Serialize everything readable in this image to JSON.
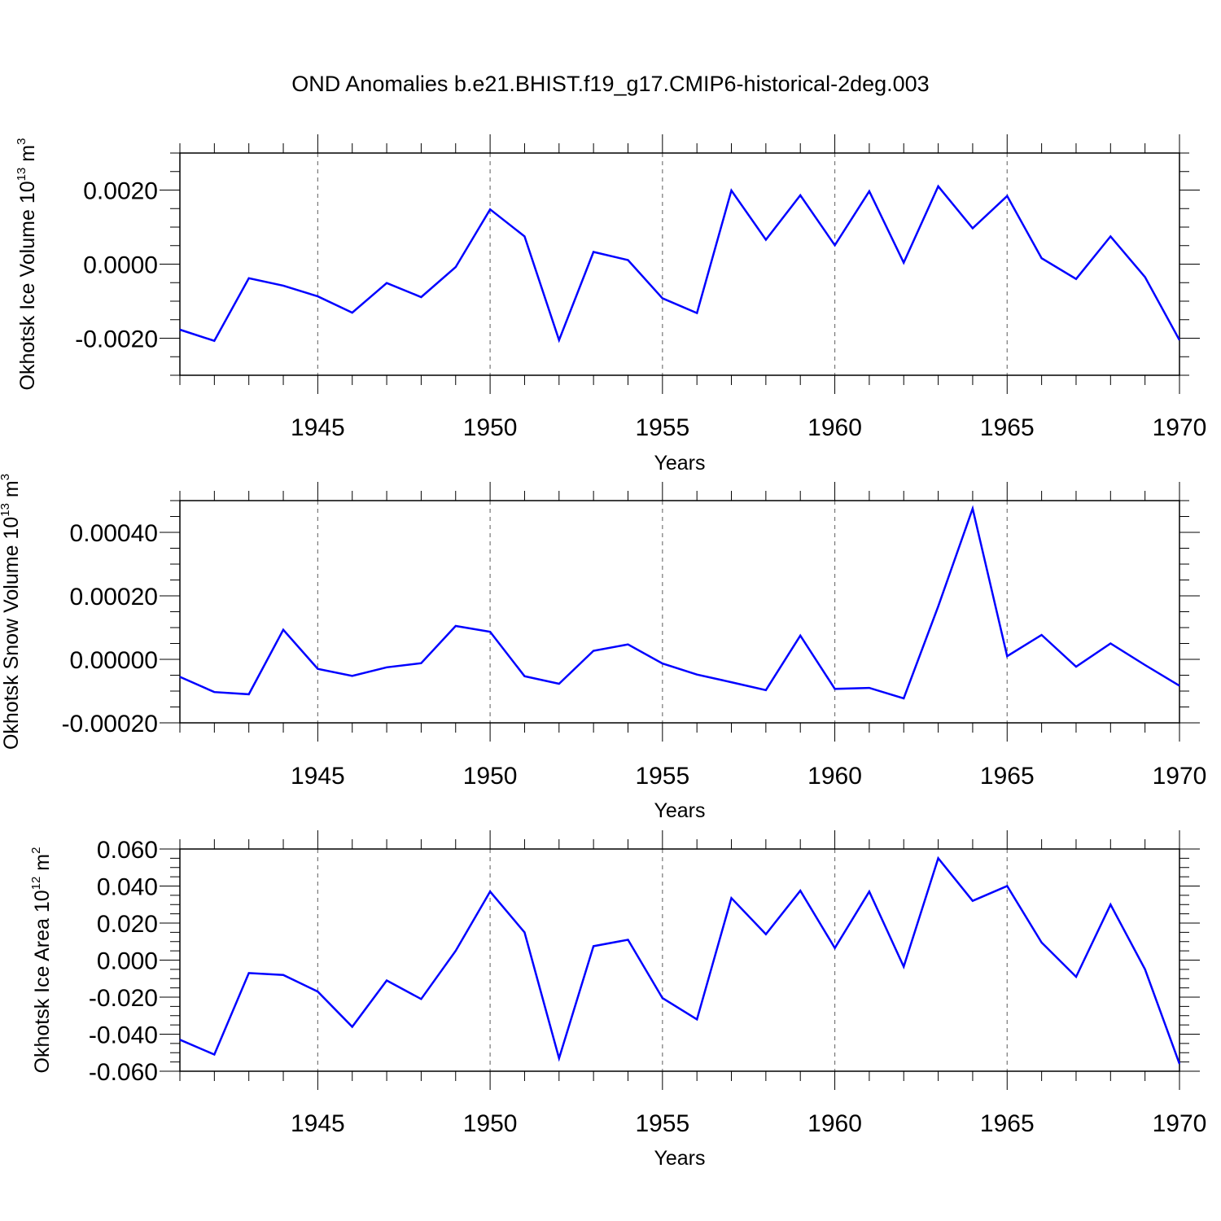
{
  "title": "OND Anomalies b.e21.BHIST.f19_g17.CMIP6-historical-2deg.003",
  "colors": {
    "line": "#0000ff",
    "axis": "#000000",
    "grid": "#777777"
  },
  "chart_data": [
    {
      "type": "line",
      "title": "OND Anomalies b.e21.BHIST.f19_g17.CMIP6-historical-2deg.003",
      "xlabel": "Years",
      "ylabel_main": "Okhotsk Ice Volume 10",
      "ylabel_exp": "13",
      "ylabel_unit": " m",
      "ylabel_unit_exp": "3",
      "xlim": [
        1941,
        1970
      ],
      "ylim": [
        -0.003,
        0.003
      ],
      "x_ticks": [
        1945,
        1950,
        1955,
        1960,
        1965,
        1970
      ],
      "x_tick_labels": [
        "1945",
        "1950",
        "1955",
        "1960",
        "1965",
        "1970"
      ],
      "y_ticks": [
        -0.002,
        0.0,
        0.002
      ],
      "y_tick_labels": [
        "-0.0020",
        "0.0000",
        "0.0020"
      ],
      "y_minor_step": 0.0005,
      "grid": "vertical dashed at major x ticks",
      "x": [
        1941,
        1942,
        1943,
        1944,
        1945,
        1946,
        1947,
        1948,
        1949,
        1950,
        1951,
        1952,
        1953,
        1954,
        1955,
        1956,
        1957,
        1958,
        1959,
        1960,
        1961,
        1962,
        1963,
        1964,
        1965,
        1966,
        1967,
        1968,
        1969,
        1970
      ],
      "series": [
        {
          "name": "Okhotsk Ice Volume",
          "values": [
            -0.00177,
            -0.00207,
            -0.00038,
            -0.00058,
            -0.00087,
            -0.00131,
            -0.00051,
            -0.00089,
            -8e-05,
            0.00148,
            0.00075,
            -0.00205,
            0.00033,
            0.00011,
            -0.00092,
            -0.00132,
            0.00199,
            0.00066,
            0.00186,
            0.00051,
            0.00197,
            4e-05,
            0.0021,
            0.00097,
            0.00184,
            0.00016,
            -0.0004,
            0.00075,
            -0.00035,
            -0.00205
          ]
        }
      ]
    },
    {
      "type": "line",
      "xlabel": "Years",
      "ylabel_main": "Okhotsk Snow Volume 10",
      "ylabel_exp": "13",
      "ylabel_unit": " m",
      "ylabel_unit_exp": "3",
      "xlim": [
        1941,
        1970
      ],
      "ylim": [
        -0.0002,
        0.0005
      ],
      "x_ticks": [
        1945,
        1950,
        1955,
        1960,
        1965,
        1970
      ],
      "x_tick_labels": [
        "1945",
        "1950",
        "1955",
        "1960",
        "1965",
        "1970"
      ],
      "y_ticks": [
        -0.0002,
        0.0,
        0.0002,
        0.0004
      ],
      "y_tick_labels": [
        "-0.00020",
        "0.00000",
        "0.00020",
        "0.00040"
      ],
      "y_minor_step": 5e-05,
      "grid": "vertical dashed at major x ticks",
      "x": [
        1941,
        1942,
        1943,
        1944,
        1945,
        1946,
        1947,
        1948,
        1949,
        1950,
        1951,
        1952,
        1953,
        1954,
        1955,
        1956,
        1957,
        1958,
        1959,
        1960,
        1961,
        1962,
        1963,
        1964,
        1965,
        1966,
        1967,
        1968,
        1969,
        1970
      ],
      "series": [
        {
          "name": "Okhotsk Snow Volume",
          "values": [
            -5.5e-05,
            -0.000103,
            -0.00011,
            9.3e-05,
            -3e-05,
            -5.2e-05,
            -2.5e-05,
            -1.2e-05,
            0.000105,
            8.7e-05,
            -5.3e-05,
            -7.7e-05,
            2.7e-05,
            4.7e-05,
            -1.3e-05,
            -4.8e-05,
            -7.2e-05,
            -9.7e-05,
            7.5e-05,
            -9.3e-05,
            -9e-05,
            -0.000123,
            0.000167,
            0.000475,
            1e-05,
            7.7e-05,
            -2.3e-05,
            5e-05,
            -1.8e-05,
            -8.3e-05
          ]
        }
      ]
    },
    {
      "type": "line",
      "xlabel": "Years",
      "ylabel_main": "Okhotsk Ice Area 10",
      "ylabel_exp": "12",
      "ylabel_unit": " m",
      "ylabel_unit_exp": "2",
      "xlim": [
        1941,
        1970
      ],
      "ylim": [
        -0.06,
        0.06
      ],
      "x_ticks": [
        1945,
        1950,
        1955,
        1960,
        1965,
        1970
      ],
      "x_tick_labels": [
        "1945",
        "1950",
        "1955",
        "1960",
        "1965",
        "1970"
      ],
      "y_ticks": [
        -0.06,
        -0.04,
        -0.02,
        0.0,
        0.02,
        0.04,
        0.06
      ],
      "y_tick_labels": [
        "-0.060",
        "-0.040",
        "-0.020",
        "0.000",
        "0.020",
        "0.040",
        "0.060"
      ],
      "y_minor_step": 0.005,
      "grid": "vertical dashed at major x ticks",
      "x": [
        1941,
        1942,
        1943,
        1944,
        1945,
        1946,
        1947,
        1948,
        1949,
        1950,
        1951,
        1952,
        1953,
        1954,
        1955,
        1956,
        1957,
        1958,
        1959,
        1960,
        1961,
        1962,
        1963,
        1964,
        1965,
        1966,
        1967,
        1968,
        1969,
        1970
      ],
      "series": [
        {
          "name": "Okhotsk Ice Area",
          "values": [
            -0.043,
            -0.051,
            -0.007,
            -0.008,
            -0.017,
            -0.036,
            -0.011,
            -0.021,
            0.005,
            0.037,
            0.015,
            -0.053,
            0.0075,
            0.011,
            -0.0205,
            -0.032,
            0.0335,
            0.014,
            0.0375,
            0.0065,
            0.037,
            -0.0035,
            0.055,
            0.032,
            0.04,
            0.0095,
            -0.009,
            0.03,
            -0.005,
            -0.056
          ]
        }
      ]
    }
  ]
}
